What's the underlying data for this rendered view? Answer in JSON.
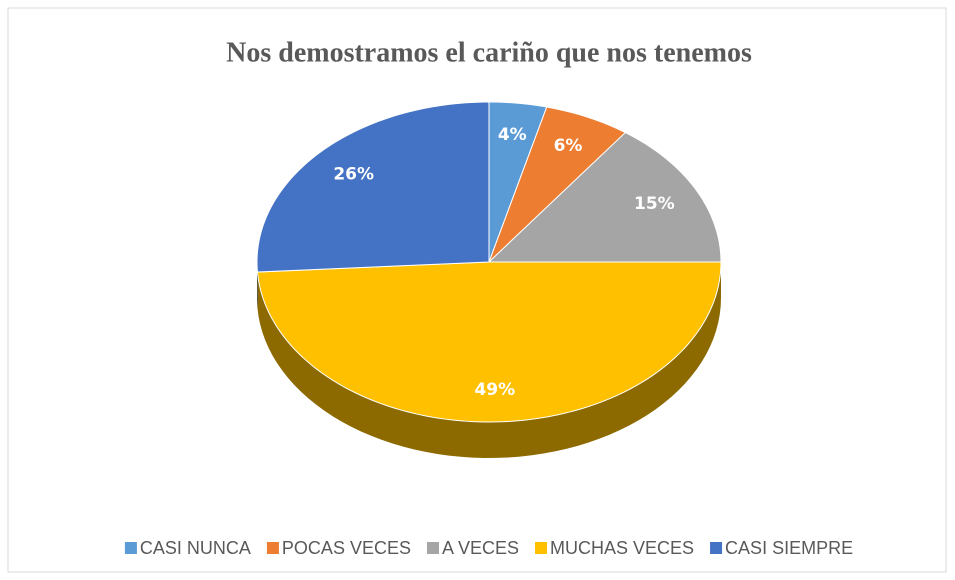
{
  "chart_data": {
    "type": "pie",
    "title": "Nos demostramos el cariño que nos tenemos",
    "categories": [
      "CASI NUNCA",
      "POCAS VECES",
      "A VECES",
      "MUCHAS VECES",
      "CASI SIEMPRE"
    ],
    "values": [
      4,
      6,
      15,
      49,
      26
    ],
    "value_labels": [
      "4%",
      "6%",
      "15%",
      "49%",
      "26%"
    ],
    "colors": [
      "#5b9bd5",
      "#ed7d31",
      "#a5a5a5",
      "#ffc000",
      "#4472c4"
    ],
    "legend": "bottom"
  }
}
